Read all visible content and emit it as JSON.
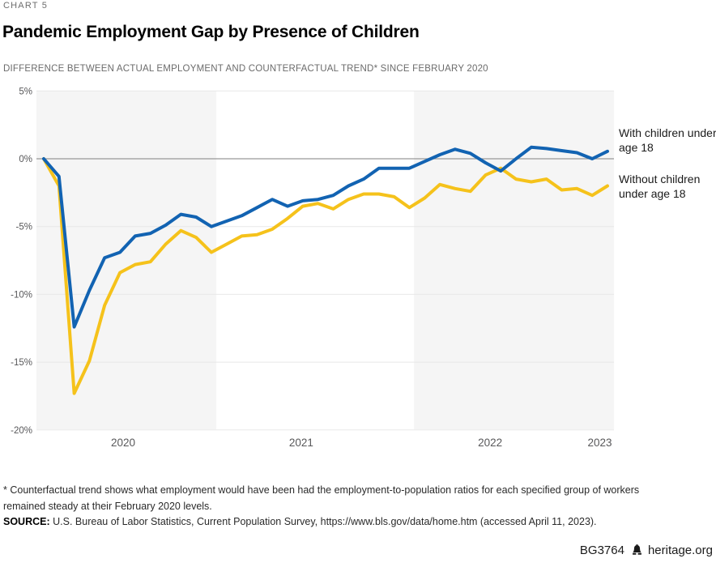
{
  "header": {
    "kicker": "CHART 5",
    "title": "Pandemic Employment Gap by Presence of Children",
    "subtitle": "DIFFERENCE BETWEEN ACTUAL EMPLOYMENT AND COUNTERFACTUAL TREND* SINCE FEBRUARY 2020"
  },
  "colors": {
    "with_children_blue": "#1263b2",
    "without_children_gold": "#f5c21b",
    "band_gray": "#f5f5f5",
    "grid_gray": "#e8e8e8",
    "zero_line_gray": "#999999",
    "axis_text_gray": "#58585a",
    "subtitle_gray": "#6b6b6b"
  },
  "chart_data": {
    "type": "line",
    "title": "Pandemic Employment Gap by Presence of Children",
    "subtitle": "DIFFERENCE BETWEEN ACTUAL EMPLOYMENT AND COUNTERFACTUAL TREND* SINCE FEBRUARY 2020",
    "x_unit": "month",
    "categories": [
      "Feb 2020",
      "Mar 2020",
      "Apr 2020",
      "May 2020",
      "Jun 2020",
      "Jul 2020",
      "Aug 2020",
      "Sep 2020",
      "Oct 2020",
      "Nov 2020",
      "Dec 2020",
      "Jan 2021",
      "Feb 2021",
      "Mar 2021",
      "Apr 2021",
      "May 2021",
      "Jun 2021",
      "Jul 2021",
      "Aug 2021",
      "Sep 2021",
      "Oct 2021",
      "Nov 2021",
      "Dec 2021",
      "Jan 2022",
      "Feb 2022",
      "Mar 2022",
      "Apr 2022",
      "May 2022",
      "Jun 2022",
      "Jul 2022",
      "Aug 2022",
      "Sep 2022",
      "Oct 2022",
      "Nov 2022",
      "Dec 2022",
      "Jan 2023",
      "Feb 2023",
      "Mar 2023"
    ],
    "series": [
      {
        "name": "with-children",
        "label": "With children under age 18",
        "color": "#1263b2",
        "values": [
          0.0,
          -1.3,
          -12.4,
          -9.7,
          -7.3,
          -6.9,
          -5.7,
          -5.5,
          -4.9,
          -4.1,
          -4.3,
          -5.0,
          -4.6,
          -4.2,
          -3.6,
          -3.0,
          -3.5,
          -3.1,
          -3.0,
          -2.7,
          -2.0,
          -1.5,
          -0.7,
          -0.7,
          -0.7,
          -0.2,
          0.3,
          0.7,
          0.4,
          -0.3,
          -0.9,
          0.0,
          0.85,
          0.75,
          0.6,
          0.45,
          0.0,
          0.55
        ]
      },
      {
        "name": "without-children",
        "label": "Without children under age 18",
        "color": "#f5c21b",
        "values": [
          0.0,
          -2.0,
          -17.3,
          -14.9,
          -10.8,
          -8.4,
          -7.8,
          -7.6,
          -6.3,
          -5.3,
          -5.8,
          -6.9,
          -6.3,
          -5.7,
          -5.6,
          -5.2,
          -4.4,
          -3.5,
          -3.3,
          -3.7,
          -3.0,
          -2.6,
          -2.6,
          -2.8,
          -3.6,
          -2.9,
          -1.9,
          -2.2,
          -2.4,
          -1.2,
          -0.7,
          -1.5,
          -1.7,
          -1.5,
          -2.3,
          -2.2,
          -2.7,
          -2.0
        ]
      }
    ],
    "ylabel": "",
    "xlabel": "",
    "ylim": [
      -20,
      5
    ],
    "grid": true,
    "legend_position": "right",
    "yticks": [
      {
        "label": "5%",
        "value": 5
      },
      {
        "label": "0%",
        "value": 0
      },
      {
        "label": "-5%",
        "value": -5
      },
      {
        "label": "-10%",
        "value": -10
      },
      {
        "label": "-15%",
        "value": -15
      },
      {
        "label": "-20%",
        "value": -20
      }
    ],
    "xticks": [
      {
        "label": "2020",
        "idx": 5.21
      },
      {
        "label": "2021",
        "idx": 16.9
      },
      {
        "label": "2022",
        "idx": 29.3
      },
      {
        "label": "2023",
        "idx": 36.5
      }
    ],
    "shaded_periods": [
      {
        "from_idx": -0.48,
        "to_idx": 11.33
      },
      {
        "from_idx": 24.3,
        "to_idx": 37.43
      }
    ]
  },
  "footer": {
    "footnote": "* Counterfactual trend shows what employment would have been had the employment-to-population ratios for each specified group of workers remained steady at their February 2020 levels.",
    "source_label": "SOURCE:",
    "source_text": " U.S. Bureau of Labor Statistics, Current Population Survey, https://www.bls.gov/data/home.htm (accessed April 11, 2023)."
  },
  "branding": {
    "code": "BG3764",
    "site": "heritage.org",
    "icon": "liberty-bell-icon"
  }
}
